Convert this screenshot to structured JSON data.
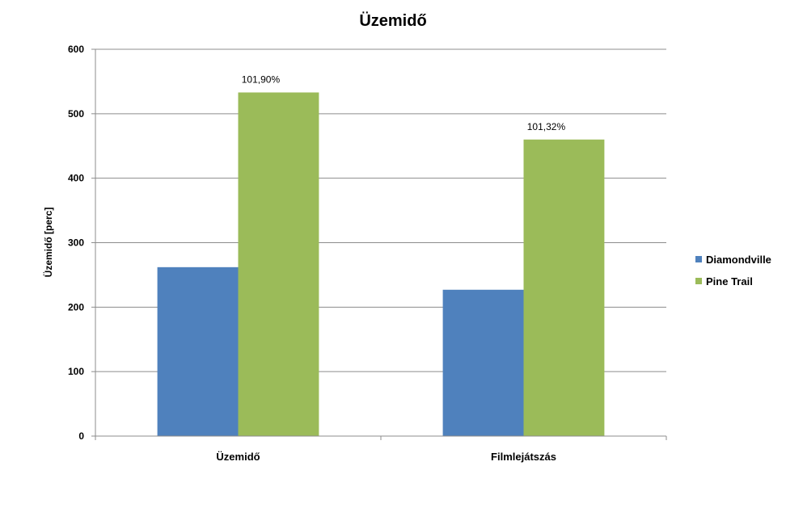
{
  "chart_data": {
    "type": "bar",
    "title": "Üzemidő",
    "xlabel": "",
    "ylabel": "Üzemidő [perc]",
    "categories": [
      "Üzemidő",
      "Filmlejátszás"
    ],
    "series": [
      {
        "name": "Diamondville",
        "values": [
          262,
          227
        ],
        "color": "#4f81bd"
      },
      {
        "name": "Pine Trail",
        "values": [
          533,
          460
        ],
        "color": "#9bbb59"
      }
    ],
    "data_labels": [
      {
        "series": "Pine Trail",
        "category": "Üzemidő",
        "text": "101,90%"
      },
      {
        "series": "Pine Trail",
        "category": "Filmlejátszás",
        "text": "101,32%"
      }
    ],
    "ylim": [
      0,
      600
    ],
    "yticks": [
      0,
      100,
      200,
      300,
      400,
      500,
      600
    ],
    "grid": true,
    "legend_position": "right",
    "gridline_color": "#8c8c8c"
  }
}
